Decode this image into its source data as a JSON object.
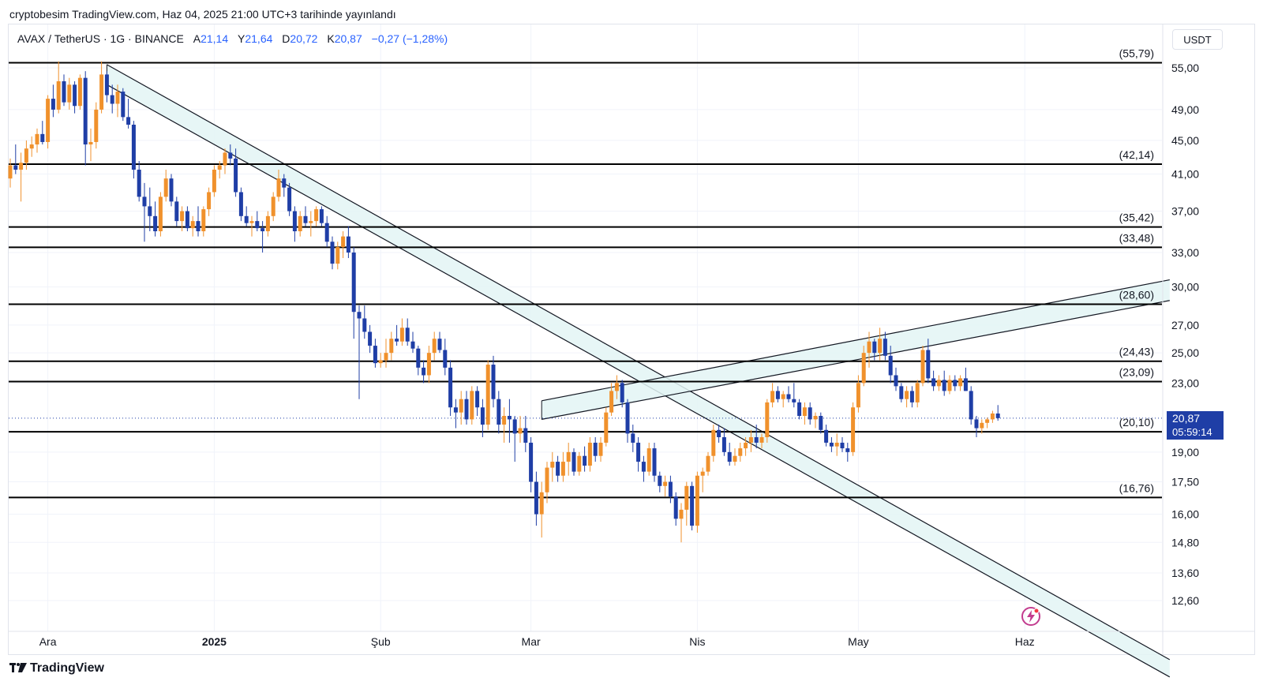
{
  "header": {
    "publish_text": "cryptobesim TradingView.com, Haz 04, 2025 21:00 UTC+3 tarihinde yayınlandı",
    "symbol": "AVAX / TetherUS · 1G · BINANCE",
    "ohlc": [
      {
        "label": "A",
        "value": "21,14"
      },
      {
        "label": "Y",
        "value": "21,64"
      },
      {
        "label": "D",
        "value": "20,72"
      },
      {
        "label": "K",
        "value": "20,87"
      }
    ],
    "change": "−0,27 (−1,28%)",
    "currency": "USDT"
  },
  "price_tag": {
    "price": "20,87",
    "countdown": "05:59:14"
  },
  "footer": {
    "logo_text": "TradingView"
  },
  "colors": {
    "up": "#f0912c",
    "down": "#1f3ea6",
    "level_line": "#000000",
    "channel_fill": "#e3f4f4",
    "accent": "#2962ff",
    "bolt": "#c23b8e"
  },
  "chart_data": {
    "type": "candlestick",
    "title": "AVAX / TetherUS · 1G · BINANCE",
    "y_axis": {
      "scale": "log",
      "ticks": [
        "55,00",
        "49,00",
        "45,00",
        "41,00",
        "37,00",
        "33,00",
        "30,00",
        "27,00",
        "25,00",
        "23,00",
        "19,00",
        "17,50",
        "16,00",
        "14,80",
        "13,60",
        "12,60"
      ],
      "tick_values": [
        55,
        49,
        45,
        41,
        37,
        33,
        30,
        27,
        25,
        23,
        19,
        17.5,
        16,
        14.8,
        13.6,
        12.6
      ],
      "range": [
        11.6,
        59
      ]
    },
    "x_axis": {
      "labels": [
        "Ara",
        "2025",
        "Şub",
        "Mar",
        "Nis",
        "May",
        "Haz"
      ],
      "label_days": [
        1,
        32,
        63,
        91,
        122,
        152,
        183
      ],
      "bold": [
        "2025"
      ],
      "range_days": [
        -6,
        212
      ]
    },
    "horizontal_levels": [
      {
        "value": 55.79,
        "label": "(55,79)"
      },
      {
        "value": 42.14,
        "label": "(42,14)"
      },
      {
        "value": 35.42,
        "label": "(35,42)"
      },
      {
        "value": 33.48,
        "label": "(33,48)"
      },
      {
        "value": 28.6,
        "label": "(28,60)"
      },
      {
        "value": 24.43,
        "label": "(24,43)"
      },
      {
        "value": 23.09,
        "label": "(23,09)"
      },
      {
        "value": 20.1,
        "label": "(20,10)"
      },
      {
        "value": 16.76,
        "label": "(16,76)"
      }
    ],
    "channels": [
      {
        "name": "descending-channel",
        "start_day": 12,
        "end_day": 210,
        "upper": [
          55.5,
          10.7
        ],
        "lower": [
          52.5,
          10.2
        ]
      },
      {
        "name": "ascending-channel",
        "start_day": 93,
        "end_day": 210,
        "upper": [
          21.9,
          30.6
        ],
        "lower": [
          20.8,
          28.9
        ]
      }
    ],
    "current_price": 20.87,
    "candles": [
      [
        -6,
        40.5,
        42.8,
        39.5,
        42.0
      ],
      [
        -5,
        42.0,
        44.5,
        41.0,
        41.5
      ],
      [
        -4,
        41.5,
        43.5,
        38.0,
        42.3
      ],
      [
        -3,
        42.3,
        45.0,
        41.5,
        44.0
      ],
      [
        -2,
        44.0,
        45.5,
        43.0,
        44.5
      ],
      [
        -1,
        44.5,
        46.5,
        43.5,
        45.8
      ],
      [
        0,
        45.8,
        47.5,
        44.5,
        44.8
      ],
      [
        1,
        44.8,
        51.0,
        44.0,
        50.5
      ],
      [
        2,
        50.5,
        52.5,
        48.0,
        49.0
      ],
      [
        3,
        49.0,
        56.0,
        48.5,
        53.0
      ],
      [
        4,
        53.0,
        54.0,
        49.5,
        50.0
      ],
      [
        5,
        50.0,
        53.5,
        49.0,
        52.5
      ],
      [
        6,
        52.5,
        53.0,
        48.5,
        49.5
      ],
      [
        7,
        49.5,
        54.0,
        49.0,
        53.5
      ],
      [
        8,
        53.5,
        54.5,
        42.0,
        44.5
      ],
      [
        9,
        44.5,
        46.5,
        42.5,
        44.8
      ],
      [
        10,
        44.8,
        50.0,
        44.0,
        49.0
      ],
      [
        11,
        49.0,
        56.0,
        48.5,
        54.0
      ],
      [
        12,
        54.0,
        54.5,
        50.0,
        51.0
      ],
      [
        13,
        51.0,
        52.5,
        48.5,
        49.8
      ],
      [
        14,
        49.8,
        52.5,
        48.0,
        51.5
      ],
      [
        15,
        51.5,
        52.0,
        47.5,
        48.0
      ],
      [
        16,
        48.0,
        50.5,
        46.5,
        47.0
      ],
      [
        17,
        47.0,
        47.5,
        40.5,
        41.5
      ],
      [
        18,
        41.5,
        42.5,
        38.0,
        38.5
      ],
      [
        19,
        38.5,
        40.0,
        34.0,
        37.5
      ],
      [
        20,
        37.5,
        39.5,
        35.0,
        36.5
      ],
      [
        21,
        36.5,
        38.0,
        34.5,
        35.0
      ],
      [
        22,
        35.0,
        39.0,
        34.5,
        38.5
      ],
      [
        23,
        38.5,
        41.5,
        38.0,
        40.5
      ],
      [
        24,
        40.5,
        41.0,
        37.5,
        38.0
      ],
      [
        25,
        38.0,
        38.5,
        35.5,
        36.0
      ],
      [
        26,
        36.0,
        37.5,
        35.0,
        37.0
      ],
      [
        27,
        37.0,
        37.5,
        35.0,
        35.3
      ],
      [
        28,
        35.3,
        36.5,
        34.5,
        36.0
      ],
      [
        29,
        36.0,
        37.5,
        34.5,
        35.0
      ],
      [
        30,
        35.0,
        37.5,
        34.5,
        37.2
      ],
      [
        31,
        37.2,
        39.5,
        36.5,
        39.0
      ],
      [
        32,
        39.0,
        42.0,
        38.5,
        41.5
      ],
      [
        33,
        41.5,
        42.5,
        40.5,
        42.0
      ],
      [
        34,
        42.0,
        44.0,
        41.0,
        43.5
      ],
      [
        35,
        43.5,
        44.5,
        42.0,
        42.8
      ],
      [
        36,
        42.8,
        44.0,
        38.5,
        39.0
      ],
      [
        37,
        39.0,
        39.5,
        36.0,
        36.5
      ],
      [
        38,
        36.5,
        37.5,
        35.5,
        35.8
      ],
      [
        39,
        35.8,
        36.5,
        34.5,
        36.0
      ],
      [
        40,
        36.0,
        37.0,
        35.0,
        35.3
      ],
      [
        41,
        35.3,
        36.0,
        33.0,
        35.0
      ],
      [
        42,
        35.0,
        37.0,
        34.5,
        36.5
      ],
      [
        43,
        36.5,
        39.0,
        36.0,
        38.5
      ],
      [
        44,
        38.5,
        41.5,
        38.0,
        40.5
      ],
      [
        45,
        40.5,
        41.0,
        38.5,
        39.5
      ],
      [
        46,
        39.5,
        40.0,
        36.5,
        37.0
      ],
      [
        47,
        37.0,
        37.5,
        34.0,
        35.0
      ],
      [
        48,
        35.0,
        37.0,
        34.5,
        36.5
      ],
      [
        49,
        36.5,
        37.5,
        35.5,
        35.8
      ],
      [
        50,
        35.8,
        37.0,
        34.5,
        36.0
      ],
      [
        51,
        36.0,
        37.5,
        35.5,
        37.2
      ],
      [
        52,
        37.2,
        37.5,
        35.5,
        35.8
      ],
      [
        53,
        35.8,
        36.5,
        33.5,
        34.0
      ],
      [
        54,
        34.0,
        34.5,
        31.5,
        32.0
      ],
      [
        55,
        32.0,
        34.0,
        31.5,
        33.5
      ],
      [
        56,
        33.5,
        35.0,
        32.5,
        34.5
      ],
      [
        57,
        34.5,
        35.5,
        32.5,
        33.0
      ],
      [
        58,
        33.0,
        33.5,
        26.0,
        28.0
      ],
      [
        59,
        28.0,
        28.5,
        22.0,
        27.5
      ],
      [
        60,
        27.5,
        28.5,
        26.0,
        26.5
      ],
      [
        61,
        26.5,
        27.0,
        25.0,
        25.5
      ],
      [
        62,
        25.5,
        26.0,
        24.0,
        24.3
      ],
      [
        63,
        24.3,
        25.0,
        24.0,
        24.5
      ],
      [
        64,
        24.5,
        26.0,
        24.0,
        25.0
      ],
      [
        65,
        25.0,
        26.5,
        24.5,
        26.0
      ],
      [
        66,
        26.0,
        27.0,
        25.5,
        25.8
      ],
      [
        67,
        25.8,
        27.5,
        25.5,
        26.8
      ],
      [
        68,
        26.8,
        27.5,
        25.5,
        25.8
      ],
      [
        69,
        25.8,
        26.5,
        25.0,
        25.3
      ],
      [
        70,
        25.3,
        25.5,
        23.5,
        24.0
      ],
      [
        71,
        24.0,
        24.5,
        23.0,
        23.5
      ],
      [
        72,
        23.5,
        25.5,
        23.0,
        25.0
      ],
      [
        73,
        25.0,
        26.5,
        24.5,
        26.0
      ],
      [
        74,
        26.0,
        26.5,
        25.0,
        25.2
      ],
      [
        75,
        25.2,
        26.0,
        23.5,
        24.0
      ],
      [
        76,
        24.0,
        24.5,
        21.0,
        21.5
      ],
      [
        77,
        21.5,
        22.0,
        20.3,
        21.2
      ],
      [
        78,
        21.2,
        22.5,
        20.5,
        22.0
      ],
      [
        79,
        22.0,
        22.5,
        20.5,
        20.8
      ],
      [
        80,
        20.8,
        22.8,
        20.5,
        22.5
      ],
      [
        81,
        22.5,
        22.8,
        21.0,
        21.5
      ],
      [
        82,
        21.5,
        22.0,
        19.8,
        20.5
      ],
      [
        83,
        20.5,
        24.5,
        20.2,
        24.2
      ],
      [
        84,
        24.2,
        24.8,
        21.5,
        22.0
      ],
      [
        85,
        22.0,
        22.5,
        20.0,
        20.5
      ],
      [
        86,
        20.5,
        21.5,
        19.5,
        21.0
      ],
      [
        87,
        21.0,
        22.0,
        19.5,
        20.8
      ],
      [
        88,
        20.8,
        21.0,
        18.5,
        20.0
      ],
      [
        89,
        20.0,
        21.0,
        19.5,
        20.3
      ],
      [
        90,
        20.3,
        21.0,
        19.0,
        19.5
      ],
      [
        91,
        19.5,
        19.8,
        17.0,
        17.5
      ],
      [
        92,
        17.5,
        18.0,
        15.5,
        16.0
      ],
      [
        93,
        16.0,
        17.5,
        15.0,
        17.0
      ],
      [
        94,
        17.0,
        18.5,
        16.5,
        18.2
      ],
      [
        95,
        18.2,
        19.0,
        17.5,
        18.5
      ],
      [
        96,
        18.5,
        18.8,
        17.5,
        17.8
      ],
      [
        97,
        17.8,
        19.0,
        17.5,
        18.5
      ],
      [
        98,
        18.5,
        19.5,
        17.8,
        19.0
      ],
      [
        99,
        19.0,
        19.2,
        17.8,
        18.0
      ],
      [
        100,
        18.0,
        19.0,
        17.8,
        18.8
      ],
      [
        101,
        18.8,
        19.3,
        18.0,
        18.3
      ],
      [
        102,
        18.3,
        19.8,
        18.0,
        19.5
      ],
      [
        103,
        19.5,
        19.8,
        18.5,
        18.8
      ],
      [
        104,
        18.8,
        19.8,
        18.5,
        19.5
      ],
      [
        105,
        19.5,
        21.5,
        19.3,
        21.2
      ],
      [
        106,
        21.2,
        23.0,
        21.0,
        22.5
      ],
      [
        107,
        22.5,
        23.5,
        22.0,
        23.0
      ],
      [
        108,
        23.0,
        23.2,
        21.5,
        21.8
      ],
      [
        109,
        21.8,
        22.0,
        19.5,
        20.0
      ],
      [
        110,
        20.0,
        20.5,
        19.0,
        19.5
      ],
      [
        111,
        19.5,
        19.8,
        18.0,
        18.5
      ],
      [
        112,
        18.5,
        18.8,
        17.5,
        18.0
      ],
      [
        113,
        18.0,
        19.5,
        17.8,
        19.2
      ],
      [
        114,
        19.2,
        19.5,
        17.5,
        17.8
      ],
      [
        115,
        17.8,
        18.0,
        17.0,
        17.3
      ],
      [
        116,
        17.3,
        17.8,
        16.8,
        17.5
      ],
      [
        117,
        17.5,
        17.8,
        16.5,
        16.8
      ],
      [
        118,
        16.8,
        17.0,
        15.5,
        15.8
      ],
      [
        119,
        15.8,
        16.5,
        14.8,
        16.2
      ],
      [
        120,
        16.2,
        17.5,
        15.5,
        17.3
      ],
      [
        121,
        17.3,
        17.5,
        15.3,
        15.5
      ],
      [
        122,
        15.5,
        18.0,
        15.2,
        17.8
      ],
      [
        123,
        17.8,
        18.2,
        17.0,
        18.0
      ],
      [
        124,
        18.0,
        19.0,
        17.8,
        18.8
      ],
      [
        125,
        18.8,
        20.5,
        18.5,
        20.2
      ],
      [
        126,
        20.2,
        20.5,
        19.5,
        19.8
      ],
      [
        127,
        19.8,
        20.3,
        18.8,
        19.0
      ],
      [
        128,
        19.0,
        19.5,
        18.3,
        18.5
      ],
      [
        129,
        18.5,
        19.2,
        18.3,
        18.8
      ],
      [
        130,
        18.8,
        19.5,
        18.5,
        19.2
      ],
      [
        131,
        19.2,
        19.8,
        18.8,
        19.5
      ],
      [
        132,
        19.5,
        20.2,
        19.0,
        19.8
      ],
      [
        133,
        19.8,
        20.5,
        19.2,
        19.5
      ],
      [
        134,
        19.5,
        20.0,
        19.2,
        19.8
      ],
      [
        135,
        19.8,
        22.0,
        19.5,
        21.8
      ],
      [
        136,
        21.8,
        23.0,
        21.5,
        22.5
      ],
      [
        137,
        22.5,
        22.8,
        21.8,
        22.0
      ],
      [
        138,
        22.0,
        22.5,
        21.5,
        22.3
      ],
      [
        139,
        22.3,
        22.8,
        21.8,
        22.0
      ],
      [
        140,
        22.0,
        23.0,
        21.5,
        21.8
      ],
      [
        141,
        21.8,
        22.0,
        20.8,
        21.0
      ],
      [
        142,
        21.0,
        21.8,
        20.5,
        21.5
      ],
      [
        143,
        21.5,
        21.8,
        20.5,
        20.8
      ],
      [
        144,
        20.8,
        21.2,
        20.3,
        21.0
      ],
      [
        145,
        21.0,
        21.2,
        20.0,
        20.2
      ],
      [
        146,
        20.2,
        20.5,
        19.3,
        19.5
      ],
      [
        147,
        19.5,
        19.8,
        19.0,
        19.3
      ],
      [
        148,
        19.3,
        20.0,
        18.8,
        19.5
      ],
      [
        149,
        19.5,
        19.8,
        19.0,
        19.2
      ],
      [
        150,
        19.2,
        19.5,
        18.5,
        19.0
      ],
      [
        151,
        19.0,
        21.8,
        18.8,
        21.5
      ],
      [
        152,
        21.5,
        23.5,
        21.2,
        23.0
      ],
      [
        153,
        23.0,
        25.5,
        22.8,
        25.0
      ],
      [
        154,
        25.0,
        26.5,
        24.0,
        25.8
      ],
      [
        155,
        25.8,
        26.0,
        24.5,
        25.0
      ],
      [
        156,
        25.0,
        26.8,
        24.5,
        26.0
      ],
      [
        157,
        26.0,
        26.5,
        24.5,
        24.8
      ],
      [
        158,
        24.8,
        25.5,
        23.0,
        23.5
      ],
      [
        159,
        23.5,
        24.0,
        22.5,
        22.8
      ],
      [
        160,
        22.8,
        23.0,
        21.8,
        22.0
      ],
      [
        161,
        22.0,
        22.8,
        21.5,
        22.5
      ],
      [
        162,
        22.5,
        22.8,
        21.5,
        21.8
      ],
      [
        163,
        21.8,
        23.2,
        21.5,
        23.0
      ],
      [
        164,
        23.0,
        25.5,
        22.8,
        25.2
      ],
      [
        165,
        25.2,
        26.0,
        23.0,
        23.3
      ],
      [
        166,
        23.3,
        23.8,
        22.5,
        22.8
      ],
      [
        167,
        22.8,
        23.5,
        22.5,
        23.2
      ],
      [
        168,
        23.2,
        23.8,
        22.2,
        22.5
      ],
      [
        169,
        22.5,
        23.5,
        22.3,
        23.2
      ],
      [
        170,
        23.2,
        23.5,
        22.5,
        22.8
      ],
      [
        171,
        22.8,
        23.5,
        22.5,
        23.3
      ],
      [
        172,
        23.3,
        24.0,
        22.5,
        22.5
      ],
      [
        173,
        22.5,
        22.8,
        20.5,
        20.8
      ],
      [
        174,
        20.8,
        21.0,
        19.8,
        20.3
      ],
      [
        175,
        20.3,
        20.8,
        20.0,
        20.6
      ],
      [
        176,
        20.6,
        20.9,
        20.3,
        20.8
      ],
      [
        177,
        20.8,
        21.3,
        20.6,
        21.14
      ],
      [
        178,
        21.14,
        21.64,
        20.72,
        20.87
      ]
    ]
  }
}
